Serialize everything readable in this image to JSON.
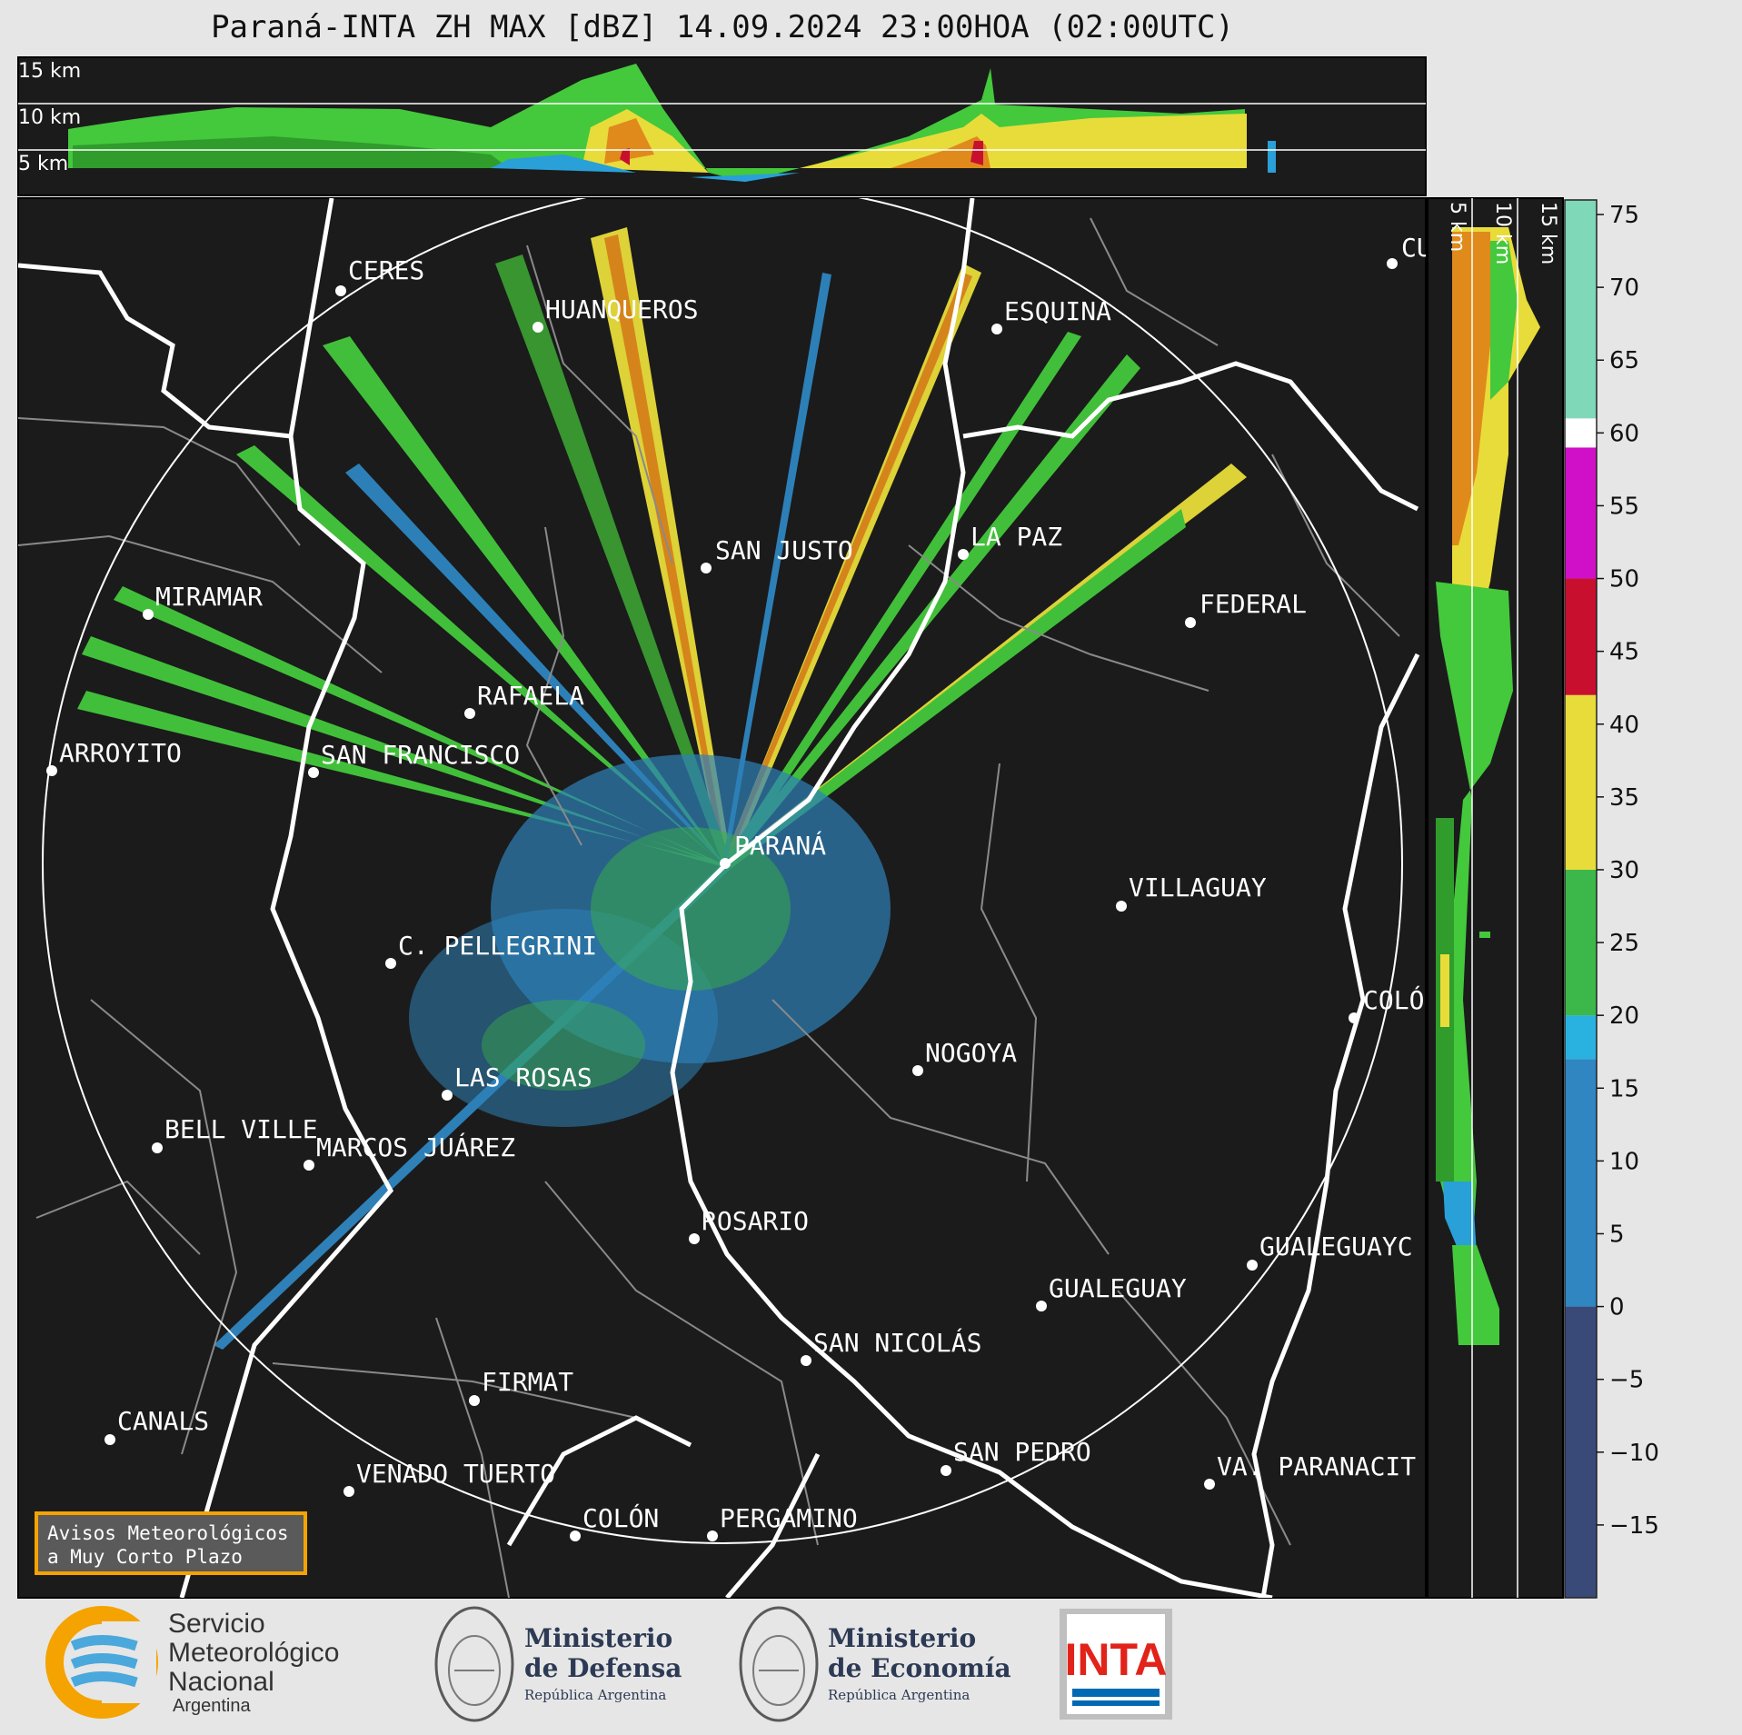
{
  "title": "Paraná-INTA ZH MAX [dBZ] 14.09.2024 23:00HOA (02:00UTC)",
  "top_panel_labels": [
    "15 km",
    "10 km",
    "5 km"
  ],
  "side_panel_labels": [
    "5 km",
    "10 km",
    "15 km"
  ],
  "colorbar": {
    "ticks": [
      75,
      70,
      65,
      60,
      55,
      50,
      45,
      40,
      35,
      30,
      25,
      20,
      15,
      10,
      5,
      0,
      -5,
      -10,
      -15
    ],
    "tick_labels": [
      "75",
      "70",
      "65",
      "60",
      "55",
      "50",
      "45",
      "40",
      "35",
      "30",
      "25",
      "20",
      "15",
      "10",
      "5",
      "0",
      "−5",
      "−10",
      "−15"
    ],
    "range": [
      -20,
      76
    ],
    "bands": [
      {
        "from": -20,
        "to": 0,
        "color": "#3a4a78"
      },
      {
        "from": 0,
        "to": 17,
        "color": "#2f86c0"
      },
      {
        "from": 17,
        "to": 20,
        "color": "#29b2e0"
      },
      {
        "from": 20,
        "to": 30,
        "color": "#3cb84a"
      },
      {
        "from": 30,
        "to": 42,
        "color": "#e8dc3a"
      },
      {
        "from": 42,
        "to": 50,
        "color": "#c8102e"
      },
      {
        "from": 50,
        "to": 59,
        "color": "#d010c8"
      },
      {
        "from": 59,
        "to": 61,
        "color": "#ffffff"
      },
      {
        "from": 61,
        "to": 76,
        "color": "#7fd8b8"
      }
    ]
  },
  "cities": [
    {
      "name": "CERES"
    },
    {
      "name": "HUANQUEROS"
    },
    {
      "name": "ESQUINA"
    },
    {
      "name": "CU"
    },
    {
      "name": "SAN JUSTO"
    },
    {
      "name": "LA PAZ"
    },
    {
      "name": "MIRAMAR"
    },
    {
      "name": "FEDERAL"
    },
    {
      "name": "RAFAELA"
    },
    {
      "name": "ARROYITO"
    },
    {
      "name": "SAN FRANCISCO"
    },
    {
      "name": "PARANÁ"
    },
    {
      "name": "VILLAGUAY"
    },
    {
      "name": "C. PELLEGRINI"
    },
    {
      "name": "COLÓ"
    },
    {
      "name": "NOGOYA"
    },
    {
      "name": "LAS ROSAS"
    },
    {
      "name": "BELL VILLE"
    },
    {
      "name": "MARCOS JUÁREZ"
    },
    {
      "name": "ROSARIO"
    },
    {
      "name": "GUALEGUAYC"
    },
    {
      "name": "GUALEGUAY"
    },
    {
      "name": "SAN NICOLÁS"
    },
    {
      "name": "FIRMAT"
    },
    {
      "name": "CANALS"
    },
    {
      "name": "SAN PEDRO"
    },
    {
      "name": "VENADO TUERTO"
    },
    {
      "name": "VA. PARANACIT"
    },
    {
      "name": "COLÓN"
    },
    {
      "name": "PERGAMINO"
    }
  ],
  "aviso": {
    "line1": "Avisos Meteorológicos",
    "line2": "a Muy Corto Plazo"
  },
  "logos": {
    "smn": {
      "line1": "Servicio",
      "line2": "Meteorológico",
      "line3": "Nacional",
      "line4": "Argentina"
    },
    "defensa": {
      "line1": "Ministerio",
      "line2": "de Defensa",
      "line3": "República Argentina"
    },
    "economia": {
      "line1": "Ministerio",
      "line2": "de Economía",
      "line3": "República Argentina"
    },
    "inta": {
      "text": "INTA"
    }
  },
  "colors": {
    "background": "#1b1b1b",
    "page": "#e6e6e6",
    "accent_orange": "#f4a300",
    "inta_red": "#e2231a",
    "inta_blue": "#0069b4"
  }
}
